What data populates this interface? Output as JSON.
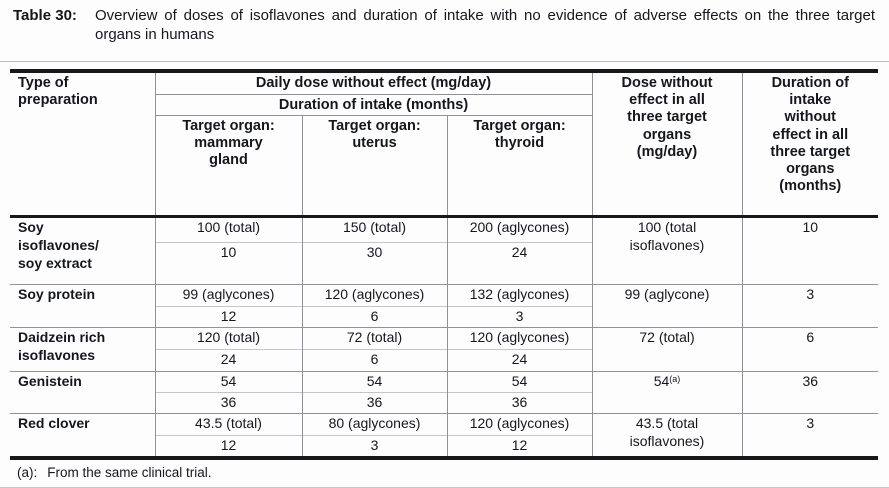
{
  "caption": {
    "label": "Table 30:",
    "text": "Overview of doses of isoflavones and duration of intake with no evidence of adverse effects on the three target organs in humans"
  },
  "table": {
    "col1_header": "Type of\npreparation",
    "group_header_dose": "Daily dose without effect (mg/day)",
    "group_header_duration": "Duration of intake (months)",
    "organ_headers": [
      "Target organ:\nmammary\ngland",
      "Target organ:\nuterus",
      "Target organ:\nthyroid"
    ],
    "col5_header": "Dose without\neffect in all\nthree target\norgans\n(mg/day)",
    "col6_header": "Duration of\nintake\nwithout\neffect in all\nthree target\norgans\n(months)",
    "rows": [
      {
        "preparation": "Soy\nisoflavones/\nsoy extract",
        "mammary": {
          "dose": "100 (total)",
          "duration": "10"
        },
        "uterus": {
          "dose": "150 (total)",
          "duration": "30"
        },
        "thyroid": {
          "dose": "200 (aglycones)",
          "duration": "24"
        },
        "all_organs_dose": "100 (total\nisoflavones)",
        "all_organs_duration": "10"
      },
      {
        "preparation": "Soy protein",
        "mammary": {
          "dose": "99 (aglycones)",
          "duration": "12"
        },
        "uterus": {
          "dose": "120 (aglycones)",
          "duration": "6"
        },
        "thyroid": {
          "dose": "132 (aglycones)",
          "duration": "3"
        },
        "all_organs_dose": "99 (aglycone)",
        "all_organs_duration": "3"
      },
      {
        "preparation": "Daidzein rich\nisoflavones",
        "mammary": {
          "dose": "120 (total)",
          "duration": "24"
        },
        "uterus": {
          "dose": "72 (total)",
          "duration": "6"
        },
        "thyroid": {
          "dose": "120 (aglycones)",
          "duration": "24"
        },
        "all_organs_dose": "72 (total)",
        "all_organs_duration": "6"
      },
      {
        "preparation": "Genistein",
        "mammary": {
          "dose": "54",
          "duration": "36"
        },
        "uterus": {
          "dose": "54",
          "duration": "36"
        },
        "thyroid": {
          "dose": "54",
          "duration": "36"
        },
        "all_organs_dose": "54",
        "all_organs_dose_sup": "(a)",
        "all_organs_duration": "36"
      },
      {
        "preparation": "Red clover",
        "mammary": {
          "dose": "43.5 (total)",
          "duration": "12"
        },
        "uterus": {
          "dose": "80 (aglycones)",
          "duration": "3"
        },
        "thyroid": {
          "dose": "120 (aglycones)",
          "duration": "12"
        },
        "all_organs_dose": "43.5 (total\nisoflavones)",
        "all_organs_duration": "3"
      }
    ]
  },
  "footnote": {
    "marker": "(a):",
    "text": "From the same clinical trial."
  }
}
